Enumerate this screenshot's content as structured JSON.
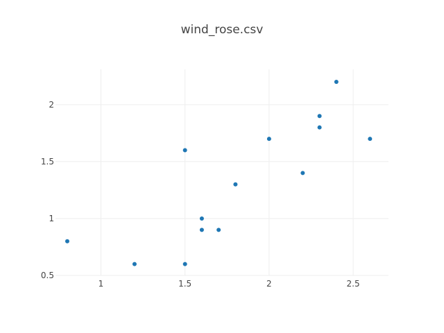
{
  "chart_data": {
    "type": "scatter",
    "title": "wind_rose.csv",
    "xlabel": "",
    "ylabel": "",
    "xlim": [
      0.73,
      2.71
    ],
    "ylim": [
      0.5,
      2.31
    ],
    "x_ticks": [
      1,
      1.5,
      2,
      2.5
    ],
    "y_ticks": [
      0.5,
      1,
      1.5,
      2
    ],
    "x_tick_labels": [
      "1",
      "1.5",
      "2",
      "2.5"
    ],
    "y_tick_labels": [
      "0.5",
      "1",
      "1.5",
      "2"
    ],
    "grid": true,
    "color": "#1f77b4",
    "points": [
      {
        "x": 0.8,
        "y": 0.8
      },
      {
        "x": 1.2,
        "y": 0.6
      },
      {
        "x": 1.5,
        "y": 0.6
      },
      {
        "x": 1.5,
        "y": 1.6
      },
      {
        "x": 1.6,
        "y": 1.0
      },
      {
        "x": 1.6,
        "y": 0.9
      },
      {
        "x": 1.7,
        "y": 0.9
      },
      {
        "x": 1.8,
        "y": 1.3
      },
      {
        "x": 2.0,
        "y": 1.7
      },
      {
        "x": 2.2,
        "y": 1.4
      },
      {
        "x": 2.3,
        "y": 1.9
      },
      {
        "x": 2.3,
        "y": 1.8
      },
      {
        "x": 2.4,
        "y": 2.2
      },
      {
        "x": 2.6,
        "y": 1.7
      }
    ]
  }
}
